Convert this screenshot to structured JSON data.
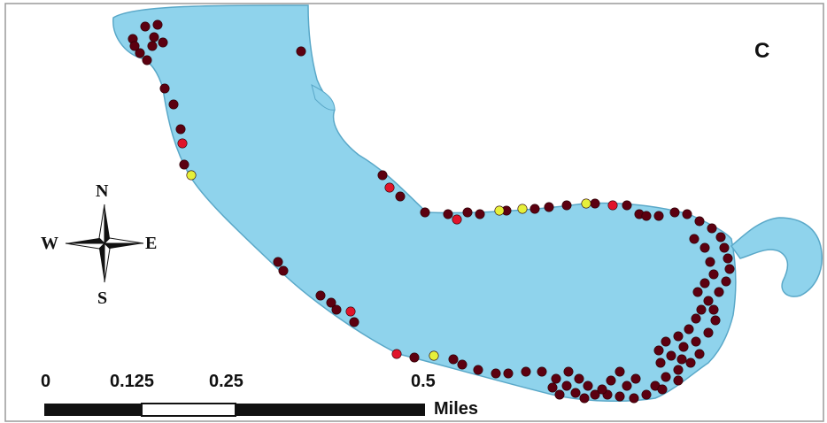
{
  "panel_letter": "C",
  "compass": {
    "north": "N",
    "south": "S",
    "east": "E",
    "west": "W"
  },
  "scale_bar": {
    "ticks": [
      "0",
      "0.125",
      "0.25",
      "0.5"
    ],
    "units": "Miles"
  },
  "colors": {
    "water": "#8fd3ec",
    "shoreline": "#5aa8c8",
    "background": "#ffffff",
    "site_dark": "#5c0010",
    "site_red": "#e0142a",
    "site_yellow": "#e6f03a"
  }
}
